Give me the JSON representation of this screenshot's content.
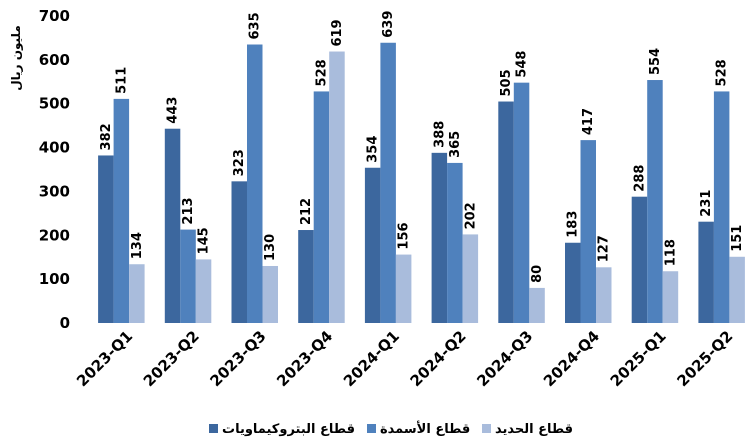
{
  "chart_data": {
    "type": "bar",
    "ylabel": "مليون ريال",
    "ylim": [
      0,
      700
    ],
    "yticks": [
      0,
      100,
      200,
      300,
      400,
      500,
      600,
      700
    ],
    "grid": false,
    "legend_position": "bottom",
    "categories": [
      "2023-Q1",
      "2023-Q2",
      "2023-Q3",
      "2023-Q4",
      "2024-Q1",
      "2024-Q2",
      "2024-Q3",
      "2024-Q4",
      "2025-Q1",
      "2025-Q2"
    ],
    "series": [
      {
        "name": "قطاع البتروكيماويات",
        "color": "#3c679e",
        "values": [
          382,
          443,
          323,
          212,
          354,
          388,
          505,
          183,
          288,
          231
        ]
      },
      {
        "name": "قطاع الأسمدة",
        "color": "#4f81bd",
        "values": [
          511,
          213,
          635,
          528,
          639,
          365,
          548,
          417,
          554,
          528
        ]
      },
      {
        "name": "قطاع الحديد",
        "color": "#a9bcdc",
        "values": [
          134,
          145,
          130,
          619,
          156,
          202,
          80,
          127,
          118,
          151
        ]
      }
    ]
  }
}
